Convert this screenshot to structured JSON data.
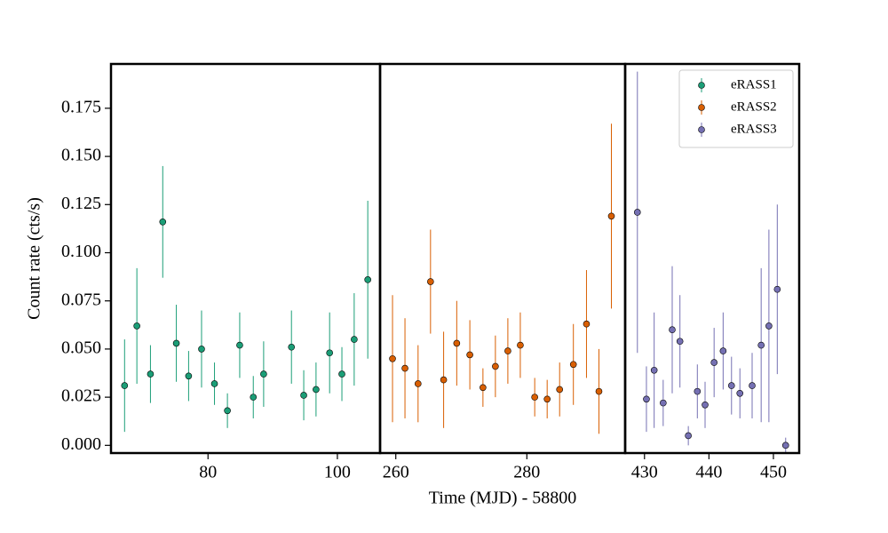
{
  "chart_data": {
    "type": "scatter",
    "xlabel": "Time (MJD) - 58800",
    "ylabel": "Count rate (cts/s)",
    "ylim": [
      -0.004,
      0.198
    ],
    "yticks": [
      {
        "value": 0,
        "label": "0.000"
      },
      0.025,
      {
        "value": 0.05,
        "label": "0.050"
      },
      0.075,
      {
        "value": 0.1,
        "label": "0.100"
      },
      0.125,
      {
        "value": 0.15,
        "label": "0.150"
      },
      0.175
    ],
    "legend": "upper right",
    "panels": [
      {
        "xlim": [
          65.0,
          106.6
        ],
        "xticks": [
          80,
          100
        ],
        "series": [
          {
            "name": "eRASS1",
            "color": "#1b9e77",
            "x": [
              67.1,
              69.0,
              71.1,
              73.0,
              75.1,
              77.0,
              79.0,
              81.0,
              83.0,
              84.9,
              87.0,
              88.6,
              92.9,
              94.8,
              96.7,
              98.8,
              100.7,
              102.6,
              104.7
            ],
            "values": [
              0.031,
              0.062,
              0.037,
              0.116,
              0.053,
              0.036,
              0.05,
              0.032,
              0.018,
              0.052,
              0.025,
              0.037,
              0.051,
              0.026,
              0.029,
              0.048,
              0.037,
              0.055,
              0.086
            ],
            "errors": [
              0.024,
              0.03,
              0.015,
              0.029,
              0.02,
              0.013,
              0.02,
              0.011,
              0.009,
              0.017,
              0.011,
              0.017,
              0.019,
              0.013,
              0.014,
              0.021,
              0.014,
              0.024,
              0.041
            ]
          }
        ]
      },
      {
        "xlim": [
          257.6,
          295.0
        ],
        "xticks": [
          260,
          280
        ],
        "series": [
          {
            "name": "eRASS2",
            "color": "#d95f02",
            "x": [
              259.5,
              261.4,
              263.4,
              265.3,
              267.3,
              269.3,
              271.3,
              273.3,
              275.2,
              277.1,
              279.0,
              281.2,
              283.1,
              285.0,
              287.1,
              289.1,
              291.0,
              292.9
            ],
            "values": [
              0.045,
              0.04,
              0.032,
              0.085,
              0.034,
              0.053,
              0.047,
              0.03,
              0.041,
              0.049,
              0.052,
              0.025,
              0.024,
              0.029,
              0.042,
              0.063,
              0.028,
              0.119
            ],
            "errors": [
              0.033,
              0.026,
              0.02,
              0.027,
              0.025,
              0.022,
              0.018,
              0.01,
              0.016,
              0.017,
              0.017,
              0.01,
              0.01,
              0.014,
              0.021,
              0.028,
              0.022,
              0.048
            ]
          }
        ]
      },
      {
        "xlim": [
          427.0,
          454.0
        ],
        "xticks": [
          430,
          440,
          450
        ],
        "series": [
          {
            "name": "eRASS3",
            "color": "#7570b3",
            "x": [
              428.9,
              430.3,
              431.5,
              432.9,
              434.3,
              435.5,
              436.8,
              438.2,
              439.4,
              440.8,
              442.2,
              443.5,
              444.8,
              446.7,
              448.1,
              449.3,
              450.6,
              451.9
            ],
            "values": [
              0.121,
              0.024,
              0.039,
              0.022,
              0.06,
              0.054,
              0.005,
              0.028,
              0.021,
              0.043,
              0.049,
              0.031,
              0.027,
              0.031,
              0.052,
              0.062,
              0.081,
              0.0
            ],
            "errors": [
              0.073,
              0.017,
              0.03,
              0.012,
              0.033,
              0.024,
              0.005,
              0.014,
              0.012,
              0.018,
              0.02,
              0.015,
              0.013,
              0.017,
              0.04,
              0.05,
              0.044,
              0.004
            ]
          }
        ]
      }
    ]
  }
}
